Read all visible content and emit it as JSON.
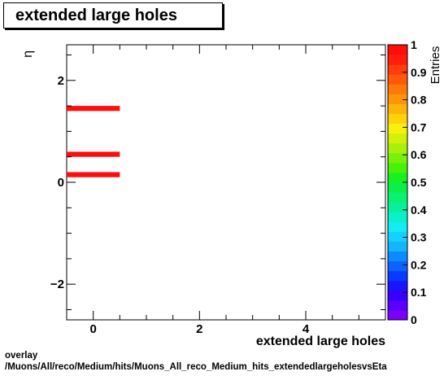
{
  "title": "extended large holes",
  "footer": {
    "line1": "overlay",
    "line2": "/Muons/All/reco/Medium/hits/Muons_All_reco_Medium_hits_extendedlargeholesvsEta"
  },
  "chart_data": {
    "type": "heatmap",
    "title": "extended large holes",
    "xlabel": "extended large holes",
    "ylabel": "η",
    "xlim": [
      -0.5,
      5.5
    ],
    "ylim": [
      -2.7,
      2.7
    ],
    "x_ticks": [
      0,
      2,
      4
    ],
    "x_tick_labels": [
      "0",
      "2",
      "4"
    ],
    "y_ticks": [
      -2,
      0,
      2
    ],
    "y_tick_labels": [
      "−2",
      "0",
      "2"
    ],
    "cells": [
      {
        "x": 0,
        "y": 1.45,
        "value": 1
      },
      {
        "x": 0,
        "y": 0.55,
        "value": 1
      },
      {
        "x": 0,
        "y": 0.15,
        "value": 1
      }
    ],
    "x_bin_width": 1,
    "y_bin_height": 0.1,
    "colorbar": {
      "label": "Entries",
      "range": [
        0,
        1
      ],
      "tick_labels": [
        "0",
        "0.1",
        "0.2",
        "0.3",
        "0.4",
        "0.5",
        "0.6",
        "0.7",
        "0.8",
        "0.9",
        "1"
      ],
      "cell_color": "#ff0d0d",
      "palette": [
        "#7a00ff",
        "#5a00ff",
        "#3a00ff",
        "#1a14ff",
        "#0a3aff",
        "#0a64ff",
        "#0a8cff",
        "#14b4ff",
        "#14d2ff",
        "#14ecf2",
        "#0af0c8",
        "#0af09a",
        "#0af070",
        "#0af048",
        "#1af020",
        "#48f00a",
        "#78f00a",
        "#a8f00a",
        "#d2f00a",
        "#f8f00a",
        "#ffd20a",
        "#ffb40a",
        "#ff960a",
        "#ff780a",
        "#ff5a0a",
        "#ff3c0a",
        "#ff1e0a",
        "#ff0d0d"
      ]
    },
    "grid": false,
    "legend": "none"
  }
}
